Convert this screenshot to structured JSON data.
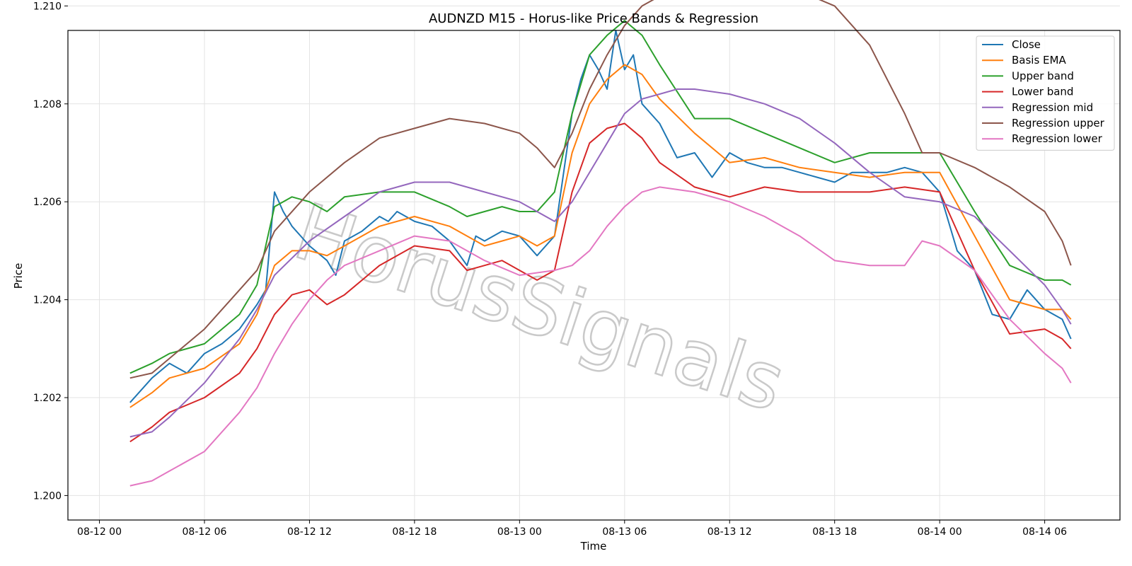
{
  "chart_data": {
    "type": "line",
    "title": "AUDNZD M15 - Horus-like Price Bands & Regression",
    "xlabel": "Time",
    "ylabel": "Price",
    "x_start": "08-12 00",
    "x_end": "08-14 12",
    "ylim": [
      1.1995,
      1.2095
    ],
    "x_ticks": [
      {
        "label": "08-12 00",
        "hour": 0
      },
      {
        "label": "08-12 06",
        "hour": 6
      },
      {
        "label": "08-12 12",
        "hour": 12
      },
      {
        "label": "08-12 18",
        "hour": 18
      },
      {
        "label": "08-13 00",
        "hour": 24
      },
      {
        "label": "08-13 06",
        "hour": 30
      },
      {
        "label": "08-13 12",
        "hour": 36
      },
      {
        "label": "08-13 18",
        "hour": 42
      },
      {
        "label": "08-14 00",
        "hour": 48
      },
      {
        "label": "08-14 06",
        "hour": 54
      }
    ],
    "y_ticks": [
      "1.200",
      "1.202",
      "1.204",
      "1.206",
      "1.208",
      "1.210"
    ],
    "grid": true,
    "legend": "top-right",
    "watermark": "HorusSignals",
    "series": [
      {
        "name": "Close",
        "color": "#1f77b4",
        "x": [
          1.75,
          3,
          4,
          5,
          6,
          7,
          8,
          9,
          9.5,
          10,
          10.5,
          11,
          12,
          13,
          13.5,
          14,
          15,
          16,
          16.5,
          17,
          18,
          19,
          20,
          21,
          21.5,
          22,
          23,
          24,
          25,
          26,
          27,
          27.5,
          28,
          28.5,
          29,
          29.5,
          30,
          30.5,
          31,
          32,
          33,
          34,
          35,
          36,
          37,
          38,
          39,
          40,
          41,
          42,
          43,
          44,
          45,
          46,
          47,
          48,
          49,
          50,
          51,
          52,
          53,
          54,
          55,
          55.5
        ],
        "values": [
          1.2019,
          1.2024,
          1.2027,
          1.2025,
          1.2029,
          1.2031,
          1.2034,
          1.2039,
          1.2042,
          1.2062,
          1.2058,
          1.2055,
          1.2051,
          1.2048,
          1.2045,
          1.2052,
          1.2054,
          1.2057,
          1.2056,
          1.2058,
          1.2056,
          1.2055,
          1.2052,
          1.2047,
          1.2053,
          1.2052,
          1.2054,
          1.2053,
          1.2049,
          1.2053,
          1.2078,
          1.2085,
          1.209,
          1.2087,
          1.2083,
          1.2095,
          1.2087,
          1.209,
          1.208,
          1.2076,
          1.2069,
          1.207,
          1.2065,
          1.207,
          1.2068,
          1.2067,
          1.2067,
          1.2066,
          1.2065,
          1.2064,
          1.2066,
          1.2066,
          1.2066,
          1.2067,
          1.2066,
          1.2062,
          1.205,
          1.2046,
          1.2037,
          1.2036,
          1.2042,
          1.2038,
          1.2036,
          1.2032
        ]
      },
      {
        "name": "Basis EMA",
        "color": "#ff7f0e",
        "x": [
          1.75,
          3,
          4,
          6,
          8,
          9,
          10,
          11,
          12,
          13,
          14,
          16,
          18,
          20,
          21,
          22,
          23,
          24,
          25,
          26,
          27,
          28,
          29,
          30,
          31,
          32,
          34,
          36,
          38,
          40,
          42,
          44,
          46,
          48,
          50,
          52,
          54,
          55,
          55.5
        ],
        "values": [
          1.2018,
          1.2021,
          1.2024,
          1.2026,
          1.2031,
          1.2037,
          1.2047,
          1.205,
          1.205,
          1.2049,
          1.2051,
          1.2055,
          1.2057,
          1.2055,
          1.2053,
          1.2051,
          1.2052,
          1.2053,
          1.2051,
          1.2053,
          1.207,
          1.208,
          1.2085,
          1.2088,
          1.2086,
          1.2081,
          1.2074,
          1.2068,
          1.2069,
          1.2067,
          1.2066,
          1.2065,
          1.2066,
          1.2066,
          1.2053,
          1.204,
          1.2038,
          1.2038,
          1.2036
        ]
      },
      {
        "name": "Upper band",
        "color": "#2ca02c",
        "x": [
          1.75,
          3,
          4,
          6,
          8,
          9,
          10,
          11,
          12,
          13,
          14,
          16,
          18,
          20,
          21,
          22,
          23,
          24,
          25,
          26,
          27,
          28,
          29,
          30,
          31,
          32,
          34,
          36,
          38,
          40,
          42,
          44,
          46,
          48,
          50,
          52,
          54,
          55,
          55.5
        ],
        "values": [
          1.2025,
          1.2027,
          1.2029,
          1.2031,
          1.2037,
          1.2043,
          1.2059,
          1.2061,
          1.206,
          1.2058,
          1.2061,
          1.2062,
          1.2062,
          1.2059,
          1.2057,
          1.2058,
          1.2059,
          1.2058,
          1.2058,
          1.2062,
          1.2078,
          1.209,
          1.2094,
          1.2097,
          1.2094,
          1.2088,
          1.2077,
          1.2077,
          1.2074,
          1.2071,
          1.2068,
          1.207,
          1.207,
          1.207,
          1.2058,
          1.2047,
          1.2044,
          1.2044,
          1.2043
        ]
      },
      {
        "name": "Lower band",
        "color": "#d62728",
        "x": [
          1.75,
          3,
          4,
          6,
          8,
          9,
          10,
          11,
          12,
          13,
          14,
          16,
          18,
          20,
          21,
          22,
          23,
          24,
          25,
          26,
          27,
          28,
          29,
          30,
          31,
          32,
          34,
          36,
          38,
          40,
          42,
          44,
          46,
          48,
          50,
          52,
          54,
          55,
          55.5
        ],
        "values": [
          1.2011,
          1.2014,
          1.2017,
          1.202,
          1.2025,
          1.203,
          1.2037,
          1.2041,
          1.2042,
          1.2039,
          1.2041,
          1.2047,
          1.2051,
          1.205,
          1.2046,
          1.2047,
          1.2048,
          1.2046,
          1.2044,
          1.2046,
          1.2062,
          1.2072,
          1.2075,
          1.2076,
          1.2073,
          1.2068,
          1.2063,
          1.2061,
          1.2063,
          1.2062,
          1.2062,
          1.2062,
          1.2063,
          1.2062,
          1.2046,
          1.2033,
          1.2034,
          1.2032,
          1.203
        ]
      },
      {
        "name": "Regression mid",
        "color": "#9467bd",
        "x": [
          1.75,
          3,
          4,
          6,
          8,
          9,
          10,
          12,
          14,
          16,
          18,
          20,
          22,
          24,
          26,
          27,
          28,
          29,
          30,
          31,
          32,
          33,
          34,
          36,
          38,
          40,
          42,
          44,
          46,
          48,
          50,
          52,
          54,
          55,
          55.5
        ],
        "values": [
          1.2012,
          1.2013,
          1.2016,
          1.2023,
          1.2032,
          1.2038,
          1.2045,
          1.2052,
          1.2057,
          1.2062,
          1.2064,
          1.2064,
          1.2062,
          1.206,
          1.2056,
          1.206,
          1.2066,
          1.2072,
          1.2078,
          1.2081,
          1.2082,
          1.2083,
          1.2083,
          1.2082,
          1.208,
          1.2077,
          1.2072,
          1.2066,
          1.2061,
          1.206,
          1.2057,
          1.205,
          1.2043,
          1.2038,
          1.2035
        ]
      },
      {
        "name": "Regression upper",
        "color": "#8c564b",
        "x": [
          1.75,
          3,
          4,
          6,
          8,
          9,
          10,
          12,
          14,
          16,
          18,
          20,
          22,
          24,
          25,
          26,
          27,
          28,
          29,
          30,
          31,
          32,
          34,
          36,
          38,
          40,
          42,
          44,
          46,
          47,
          48,
          50,
          52,
          54,
          55,
          55.5
        ],
        "values": [
          1.2024,
          1.2025,
          1.2028,
          1.2034,
          1.2042,
          1.2046,
          1.2054,
          1.2062,
          1.2068,
          1.2073,
          1.2075,
          1.2077,
          1.2076,
          1.2074,
          1.2071,
          1.2067,
          1.2074,
          1.2083,
          1.209,
          1.2096,
          1.21,
          1.2102,
          1.2104,
          1.2104,
          1.2104,
          1.2103,
          1.21,
          1.2092,
          1.2078,
          1.207,
          1.207,
          1.2067,
          1.2063,
          1.2058,
          1.2052,
          1.2047
        ]
      },
      {
        "name": "Regression lower",
        "color": "#e377c2",
        "x": [
          1.75,
          3,
          4,
          6,
          8,
          9,
          10,
          11,
          12,
          13,
          14,
          16,
          18,
          20,
          22,
          24,
          26,
          27,
          28,
          29,
          30,
          31,
          32,
          34,
          36,
          38,
          40,
          42,
          44,
          46,
          47,
          48,
          50,
          52,
          54,
          55,
          55.5
        ],
        "values": [
          1.2002,
          1.2003,
          1.2005,
          1.2009,
          1.2017,
          1.2022,
          1.2029,
          1.2035,
          1.204,
          1.2044,
          1.2047,
          1.205,
          1.2053,
          1.2052,
          1.2048,
          1.2045,
          1.2046,
          1.2047,
          1.205,
          1.2055,
          1.2059,
          1.2062,
          1.2063,
          1.2062,
          1.206,
          1.2057,
          1.2053,
          1.2048,
          1.2047,
          1.2047,
          1.2052,
          1.2051,
          1.2046,
          1.2036,
          1.2029,
          1.2026,
          1.2023
        ]
      }
    ]
  }
}
